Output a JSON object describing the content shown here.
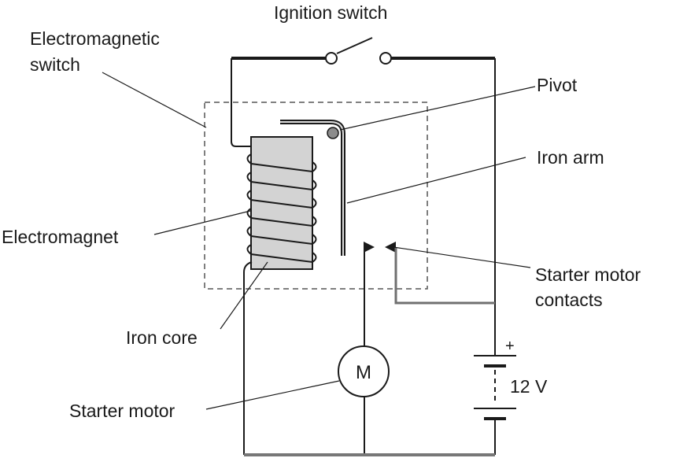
{
  "labels": {
    "ignition_switch": "Ignition switch",
    "electromagnetic_switch_line1": "Electromagnetic",
    "electromagnetic_switch_line2": "switch",
    "pivot": "Pivot",
    "iron_arm": "Iron arm",
    "electromagnet": "Electromagnet",
    "starter_motor_contacts_line1": "Starter motor",
    "starter_motor_contacts_line2": "contacts",
    "iron_core": "Iron core",
    "starter_motor": "Starter motor",
    "motor_symbol": "M",
    "battery_plus": "+",
    "battery_voltage": "12 V"
  },
  "colors": {
    "wire": "#1a1a1a",
    "core_fill": "#d3d3d3",
    "gray_wire": "#707070",
    "pivot_fill": "#8c8c8c"
  }
}
